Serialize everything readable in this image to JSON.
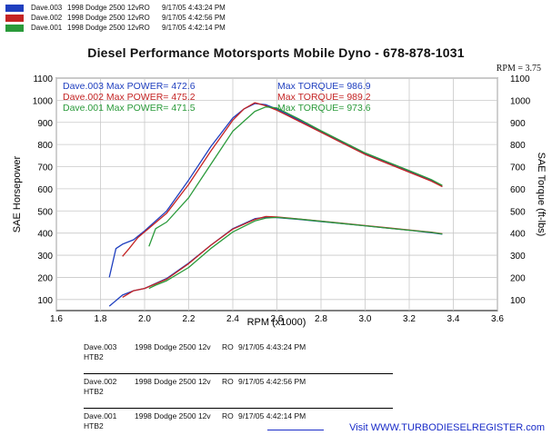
{
  "header_runs": [
    {
      "name": "Dave.003",
      "vehicle": "1998 Dodge 2500 12vRO",
      "datetime": "9/17/05 4:43:24 PM",
      "color": "#1f3fbf"
    },
    {
      "name": "Dave.002",
      "vehicle": "1998 Dodge 2500 12vRO",
      "datetime": "9/17/05 4:42:56 PM",
      "color": "#c42424"
    },
    {
      "name": "Dave.001",
      "vehicle": "1998 Dodge 2500 12vRO",
      "datetime": "9/17/05 4:42:14 PM",
      "color": "#2a9a3a"
    }
  ],
  "title": "Diesel Performance Motorsports Mobile Dyno -    678-878-1031",
  "rpm_readout": "RPM = 3.75",
  "legend": [
    {
      "power": "Dave.003  Max POWER= 472.6",
      "torque": "Max TORQUE= 986.9",
      "color": "#1f3fbf"
    },
    {
      "power": "Dave.002  Max POWER= 475.2",
      "torque": "Max TORQUE= 989.2",
      "color": "#c42424"
    },
    {
      "power": "Dave.001  Max POWER= 471.5",
      "torque": "Max TORQUE= 973.6",
      "color": "#2a9a3a"
    }
  ],
  "bottom_legend": [
    {
      "name": "Dave.003",
      "vehicle": "1998 Dodge 2500 12v",
      "ro": "RO",
      "datetime": "9/17/05 4:43:24 PM",
      "note": "HTB2"
    },
    {
      "name": "Dave.002",
      "vehicle": "1998 Dodge 2500 12v",
      "ro": "RO",
      "datetime": "9/17/05 4:42:56 PM",
      "note": "HTB2"
    },
    {
      "name": "Dave.001",
      "vehicle": "1998 Dodge 2500 12v",
      "ro": "RO",
      "datetime": "9/17/05 4:42:14 PM",
      "note": "HTB2"
    }
  ],
  "footer": "Visit WWW.TURBODIESELREGISTER.com",
  "chart_data": {
    "type": "line",
    "xlabel": "RPM (x1000)",
    "ylabel": "SAE Horsepower",
    "ylabel_right": "SAE Torque (ft-lbs)",
    "xlim": [
      1.6,
      3.6
    ],
    "ylim": [
      50,
      1100
    ],
    "ylim_right": [
      50,
      1100
    ],
    "x_ticks": [
      "1.6",
      "1.8",
      "2.0",
      "2.2",
      "2.4",
      "2.6",
      "2.8",
      "3.0",
      "3.2",
      "3.4",
      "3.6"
    ],
    "y_ticks": [
      "100",
      "200",
      "300",
      "400",
      "500",
      "600",
      "700",
      "800",
      "900",
      "1000",
      "1100"
    ],
    "y_ticks_right": [
      "100",
      "200",
      "300",
      "400",
      "500",
      "600",
      "700",
      "800",
      "900",
      "1000",
      "1100"
    ],
    "grid": true,
    "series": [
      {
        "name": "Dave.003",
        "measure": "torque",
        "color": "#1f3fbf",
        "x": [
          1.84,
          1.87,
          1.9,
          1.95,
          2.0,
          2.1,
          2.2,
          2.3,
          2.4,
          2.45,
          2.5,
          2.55,
          2.6,
          2.7,
          2.8,
          2.9,
          3.0,
          3.1,
          3.2,
          3.3,
          3.35
        ],
        "y": [
          200,
          330,
          350,
          370,
          410,
          500,
          640,
          790,
          920,
          960,
          985,
          980,
          960,
          910,
          860,
          810,
          760,
          720,
          680,
          640,
          610
        ]
      },
      {
        "name": "Dave.002",
        "measure": "torque",
        "color": "#c42424",
        "x": [
          1.9,
          1.93,
          1.97,
          2.0,
          2.1,
          2.2,
          2.3,
          2.4,
          2.45,
          2.5,
          2.55,
          2.6,
          2.7,
          2.8,
          2.9,
          3.0,
          3.1,
          3.2,
          3.3,
          3.35
        ],
        "y": [
          295,
          330,
          380,
          405,
          490,
          620,
          770,
          910,
          960,
          989,
          975,
          955,
          905,
          855,
          805,
          755,
          715,
          675,
          635,
          610
        ]
      },
      {
        "name": "Dave.001",
        "measure": "torque",
        "color": "#2a9a3a",
        "x": [
          2.02,
          2.05,
          2.1,
          2.2,
          2.3,
          2.4,
          2.5,
          2.55,
          2.6,
          2.7,
          2.8,
          2.9,
          3.0,
          3.1,
          3.2,
          3.3,
          3.35
        ],
        "y": [
          340,
          420,
          450,
          560,
          710,
          860,
          950,
          970,
          965,
          915,
          862,
          812,
          762,
          722,
          682,
          642,
          615
        ]
      },
      {
        "name": "Dave.003",
        "measure": "power",
        "color": "#1f3fbf",
        "x": [
          1.84,
          1.9,
          1.95,
          2.0,
          2.1,
          2.2,
          2.3,
          2.4,
          2.5,
          2.55,
          2.6,
          2.7,
          2.8,
          2.9,
          3.0,
          3.1,
          3.2,
          3.3,
          3.35
        ],
        "y": [
          70,
          120,
          140,
          150,
          195,
          265,
          345,
          420,
          465,
          472,
          470,
          462,
          452,
          443,
          433,
          423,
          413,
          402,
          395
        ]
      },
      {
        "name": "Dave.002",
        "measure": "power",
        "color": "#c42424",
        "x": [
          1.9,
          1.95,
          2.0,
          2.1,
          2.2,
          2.3,
          2.4,
          2.5,
          2.55,
          2.6,
          2.7,
          2.8,
          2.9,
          3.0,
          3.1,
          3.2,
          3.3,
          3.35
        ],
        "y": [
          110,
          140,
          150,
          192,
          262,
          345,
          418,
          462,
          475,
          473,
          464,
          454,
          444,
          434,
          424,
          414,
          404,
          397
        ]
      },
      {
        "name": "Dave.001",
        "measure": "power",
        "color": "#2a9a3a",
        "x": [
          2.02,
          2.05,
          2.1,
          2.2,
          2.3,
          2.4,
          2.5,
          2.55,
          2.6,
          2.7,
          2.8,
          2.9,
          3.0,
          3.1,
          3.2,
          3.3,
          3.35
        ],
        "y": [
          150,
          165,
          185,
          245,
          330,
          405,
          455,
          468,
          471,
          463,
          453,
          443,
          433,
          423,
          413,
          403,
          396
        ]
      }
    ]
  }
}
